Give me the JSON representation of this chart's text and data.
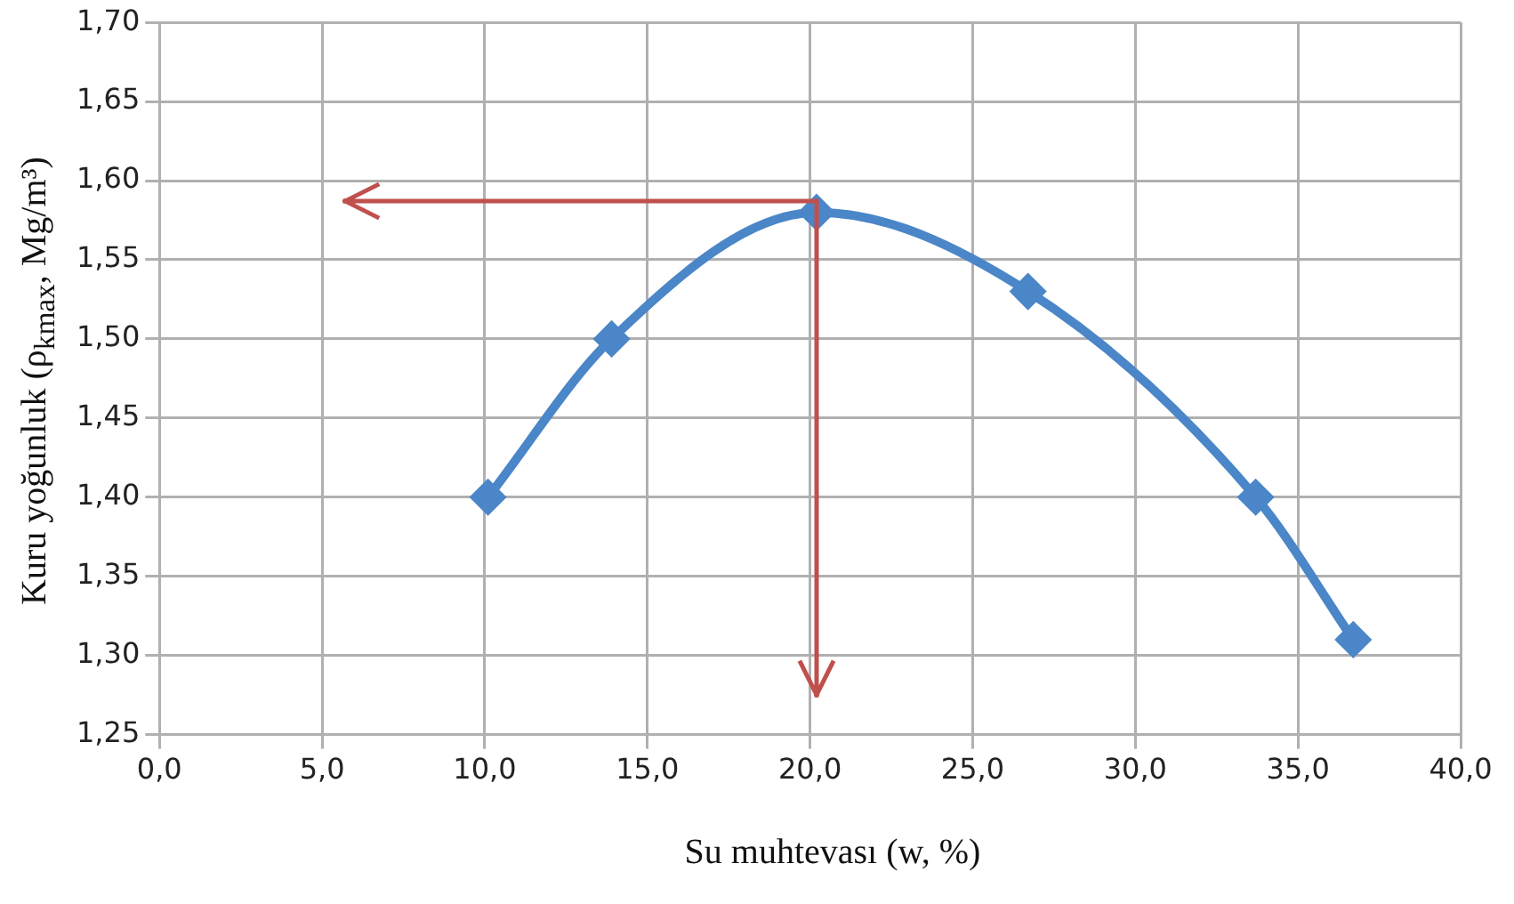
{
  "chart_data": {
    "type": "line",
    "xlabel": "Su muhtevası (w, %)",
    "ylabel": "Kuru yoğunluk (ρ$_{kmax}$, Mg/m³)",
    "x": [
      10.1,
      13.9,
      20.2,
      26.7,
      33.7,
      36.7
    ],
    "series": [
      {
        "color": "#4a86c8",
        "values": [
          1.4,
          1.5,
          1.58,
          1.53,
          1.4,
          1.31
        ]
      }
    ],
    "xlim": [
      0,
      40
    ],
    "xticks": [
      {
        "value": 0,
        "label": "0,0"
      },
      {
        "value": 5,
        "label": "5,0"
      },
      {
        "value": 10,
        "label": "10,0"
      },
      {
        "value": 15,
        "label": "15,0"
      },
      {
        "value": 20,
        "label": "20,0"
      },
      {
        "value": 25,
        "label": "25,0"
      },
      {
        "value": 30,
        "label": "30,0"
      },
      {
        "value": 35,
        "label": "35,0"
      },
      {
        "value": 40,
        "label": "40,0"
      }
    ],
    "ylim": [
      1.25,
      1.7
    ],
    "yticks": [
      {
        "value": 1.25,
        "label": "1,25"
      },
      {
        "value": 1.3,
        "label": "1,30"
      },
      {
        "value": 1.35,
        "label": "1,35"
      },
      {
        "value": 1.4,
        "label": "1,40"
      },
      {
        "value": 1.45,
        "label": "1,45"
      },
      {
        "value": 1.5,
        "label": "1,50"
      },
      {
        "value": 1.55,
        "label": "1,55"
      },
      {
        "value": 1.6,
        "label": "1,60"
      },
      {
        "value": 1.65,
        "label": "1,65"
      },
      {
        "value": 1.7,
        "label": "1,70"
      }
    ],
    "grid": true,
    "legend": false,
    "marker": "diamond",
    "line_style": "solid"
  }
}
